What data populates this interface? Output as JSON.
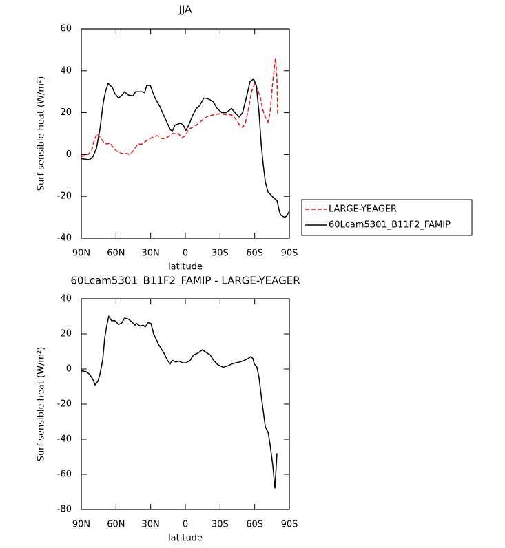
{
  "chart_data": [
    {
      "type": "line",
      "title": "JJA",
      "xlabel": "latitude",
      "ylabel": "Surf sensible heat (W/m²)",
      "xlim": [
        90,
        -90
      ],
      "ylim": [
        -40,
        60
      ],
      "xticks": [
        {
          "value": 90,
          "label": "90N"
        },
        {
          "value": 60,
          "label": "60N"
        },
        {
          "value": 30,
          "label": "30N"
        },
        0,
        {
          "value": -30,
          "label": "30S"
        },
        {
          "value": -60,
          "label": "60S"
        },
        {
          "value": -90,
          "label": "90S"
        }
      ],
      "yticks": [
        -40,
        -20,
        0,
        20,
        40,
        60
      ],
      "legend": "outside right",
      "series": [
        {
          "name": "LARGE-YEAGER",
          "color": "#e8141c",
          "dash": true,
          "x": [
            90,
            84,
            81.1,
            78.7,
            76.3,
            73.3,
            70.9,
            68,
            65,
            62,
            59,
            54.8,
            50.7,
            47.7,
            44.7,
            41.1,
            37.5,
            34,
            29.2,
            24.4,
            19.7,
            16.1,
            11.3,
            9,
            6,
            3,
            0,
            -2.9,
            -9.5,
            -13.7,
            -18.5,
            -24.5,
            -30.4,
            -35.2,
            -40,
            -43.5,
            -47.1,
            -49.5,
            -51.9,
            -54.8,
            -57.2,
            -60.2,
            -62.6,
            -65,
            -66.7,
            -69.1,
            -71.5,
            -73.3,
            -75.7,
            -78,
            -79.3,
            -79.9
          ],
          "values": [
            -1,
            0,
            2,
            7,
            10,
            8,
            6,
            5,
            5.5,
            3,
            1.5,
            0.5,
            0.5,
            0,
            2,
            5,
            5,
            6.5,
            8,
            9,
            7.5,
            8,
            10,
            10,
            10,
            8,
            9,
            12,
            14,
            16,
            18,
            19,
            19.5,
            19,
            19,
            17,
            14,
            13,
            15,
            22,
            30,
            34,
            31,
            27,
            22,
            18,
            15.5,
            20,
            35,
            46,
            36,
            19
          ]
        },
        {
          "name": "60Lcam5301_B11F2_FAMIP",
          "color": "#000000",
          "dash": false,
          "x": [
            90,
            82.8,
            79.9,
            76.9,
            73.9,
            70.9,
            69.1,
            66.8,
            63.2,
            60.8,
            57.8,
            55.4,
            52.5,
            49.5,
            45.3,
            42.9,
            36.9,
            35.2,
            33.4,
            30.4,
            26.2,
            22.1,
            17.3,
            13.1,
            11.3,
            9,
            4.2,
            1.8,
            -0.5,
            -2.9,
            -6.6,
            -9.5,
            -11.9,
            -16.1,
            -20.3,
            -24.5,
            -27.5,
            -31.6,
            -35.2,
            -37.6,
            -40,
            -43,
            -46.5,
            -49.5,
            -53.1,
            -56.1,
            -59.1,
            -61.4,
            -63.8,
            -65.6,
            -67.4,
            -69.2,
            -71.6,
            -75.2,
            -76.9,
            -79.3,
            -81.7,
            -82.8,
            -85.8,
            -87.6,
            -90
          ],
          "values": [
            -2,
            -2.5,
            -1,
            3,
            12,
            25,
            30,
            34,
            32,
            29,
            27,
            28,
            30,
            28.5,
            28,
            30,
            30,
            29.5,
            33,
            33,
            27,
            23,
            17,
            12,
            11,
            14,
            15,
            14,
            11.5,
            14,
            19,
            22,
            23,
            27,
            26.5,
            25,
            22,
            20,
            20,
            21,
            22,
            20,
            18,
            20,
            28,
            35,
            36,
            33,
            20,
            5,
            -5,
            -13,
            -18,
            -20,
            -21,
            -22,
            -28,
            -29,
            -30,
            -29.5,
            -27
          ]
        }
      ]
    },
    {
      "type": "line",
      "title": "60Lcam5301_B11F2_FAMIP - LARGE-YEAGER",
      "xlabel": "latitude",
      "ylabel": "Surf sensible heat (W/m²)",
      "xlim": [
        90,
        -90
      ],
      "ylim": [
        -80,
        40
      ],
      "xticks": [
        {
          "value": 90,
          "label": "90N"
        },
        {
          "value": 60,
          "label": "60N"
        },
        {
          "value": 30,
          "label": "30N"
        },
        0,
        {
          "value": -30,
          "label": "30S"
        },
        {
          "value": -60,
          "label": "60S"
        },
        {
          "value": -90,
          "label": "90S"
        }
      ],
      "yticks": [
        -80,
        -60,
        -40,
        -20,
        0,
        20,
        40
      ],
      "series": [
        {
          "color": "#000000",
          "dash": false,
          "x": [
            90,
            85.8,
            82.8,
            79.9,
            78.1,
            75.7,
            73.9,
            71.5,
            69.7,
            67.9,
            66.2,
            63.8,
            60.8,
            57.8,
            55.4,
            52.5,
            49.5,
            46.5,
            43.5,
            42.3,
            39.3,
            36.4,
            34.6,
            32.2,
            29.8,
            27.4,
            23.2,
            18.5,
            15.5,
            13.1,
            11.3,
            8.3,
            5.4,
            2.4,
            -0.5,
            -4.2,
            -7.1,
            -10.7,
            -14.9,
            -16.7,
            -19.1,
            -21.5,
            -24.4,
            -28,
            -32.8,
            -35.2,
            -37.6,
            -40.6,
            -43.5,
            -47.1,
            -51.3,
            -54.3,
            -56.7,
            -58.4,
            -59.6,
            -62,
            -63.8,
            -65.6,
            -67.4,
            -69.2,
            -71.6,
            -73.3,
            -75.7,
            -77.5,
            -79.3
          ],
          "values": [
            -1,
            -1.5,
            -3,
            -6,
            -9,
            -7,
            -3,
            5,
            18,
            25,
            30,
            27.5,
            27.5,
            25.5,
            26,
            29,
            28.5,
            27,
            25,
            26,
            24.5,
            25,
            24,
            26.5,
            26,
            20,
            14,
            9,
            5,
            3,
            5,
            4,
            4.5,
            3.5,
            3.5,
            5,
            8,
            9,
            11,
            10,
            9,
            8,
            5,
            2.5,
            1,
            1.5,
            2,
            3,
            3.5,
            4,
            5,
            6,
            7,
            6,
            3,
            1,
            -5,
            -15,
            -24,
            -33,
            -36,
            -43,
            -55,
            -68,
            -48
          ]
        }
      ]
    }
  ]
}
